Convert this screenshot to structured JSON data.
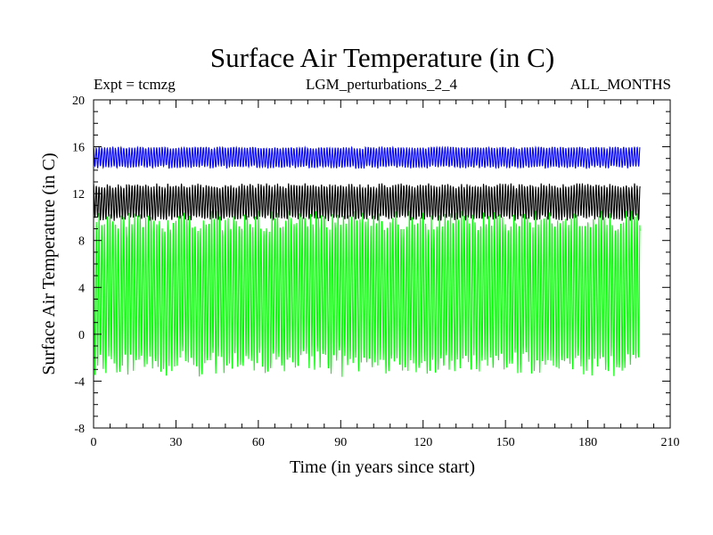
{
  "chart_data": {
    "type": "line",
    "title": "Surface Air Temperature (in C)",
    "subtitle_left": "Expt = tcmzg",
    "subtitle_center": "LGM_perturbations_2_4",
    "subtitle_right": "ALL_MONTHS",
    "xlabel": "Time (in years since start)",
    "ylabel": "Surface Air Temperature (in C)",
    "xlim": [
      0,
      210
    ],
    "ylim": [
      -8,
      20
    ],
    "xticks": [
      0,
      30,
      60,
      90,
      120,
      150,
      180,
      210
    ],
    "yticks": [
      -8,
      -4,
      0,
      4,
      8,
      12,
      16,
      20
    ],
    "x_range": [
      0,
      199
    ],
    "grid": false,
    "legend": "none",
    "series": [
      {
        "name": "blue series",
        "color": "#0000ff",
        "low": 14.1,
        "high": 15.9,
        "mean": 15.1
      },
      {
        "name": "black series",
        "color": "#000000",
        "low": 9.8,
        "high": 12.8,
        "mean": 11.3
      },
      {
        "name": "green series",
        "color": "#00ff00",
        "low": -3.0,
        "high": 10.2,
        "mean": 3.6
      }
    ]
  }
}
